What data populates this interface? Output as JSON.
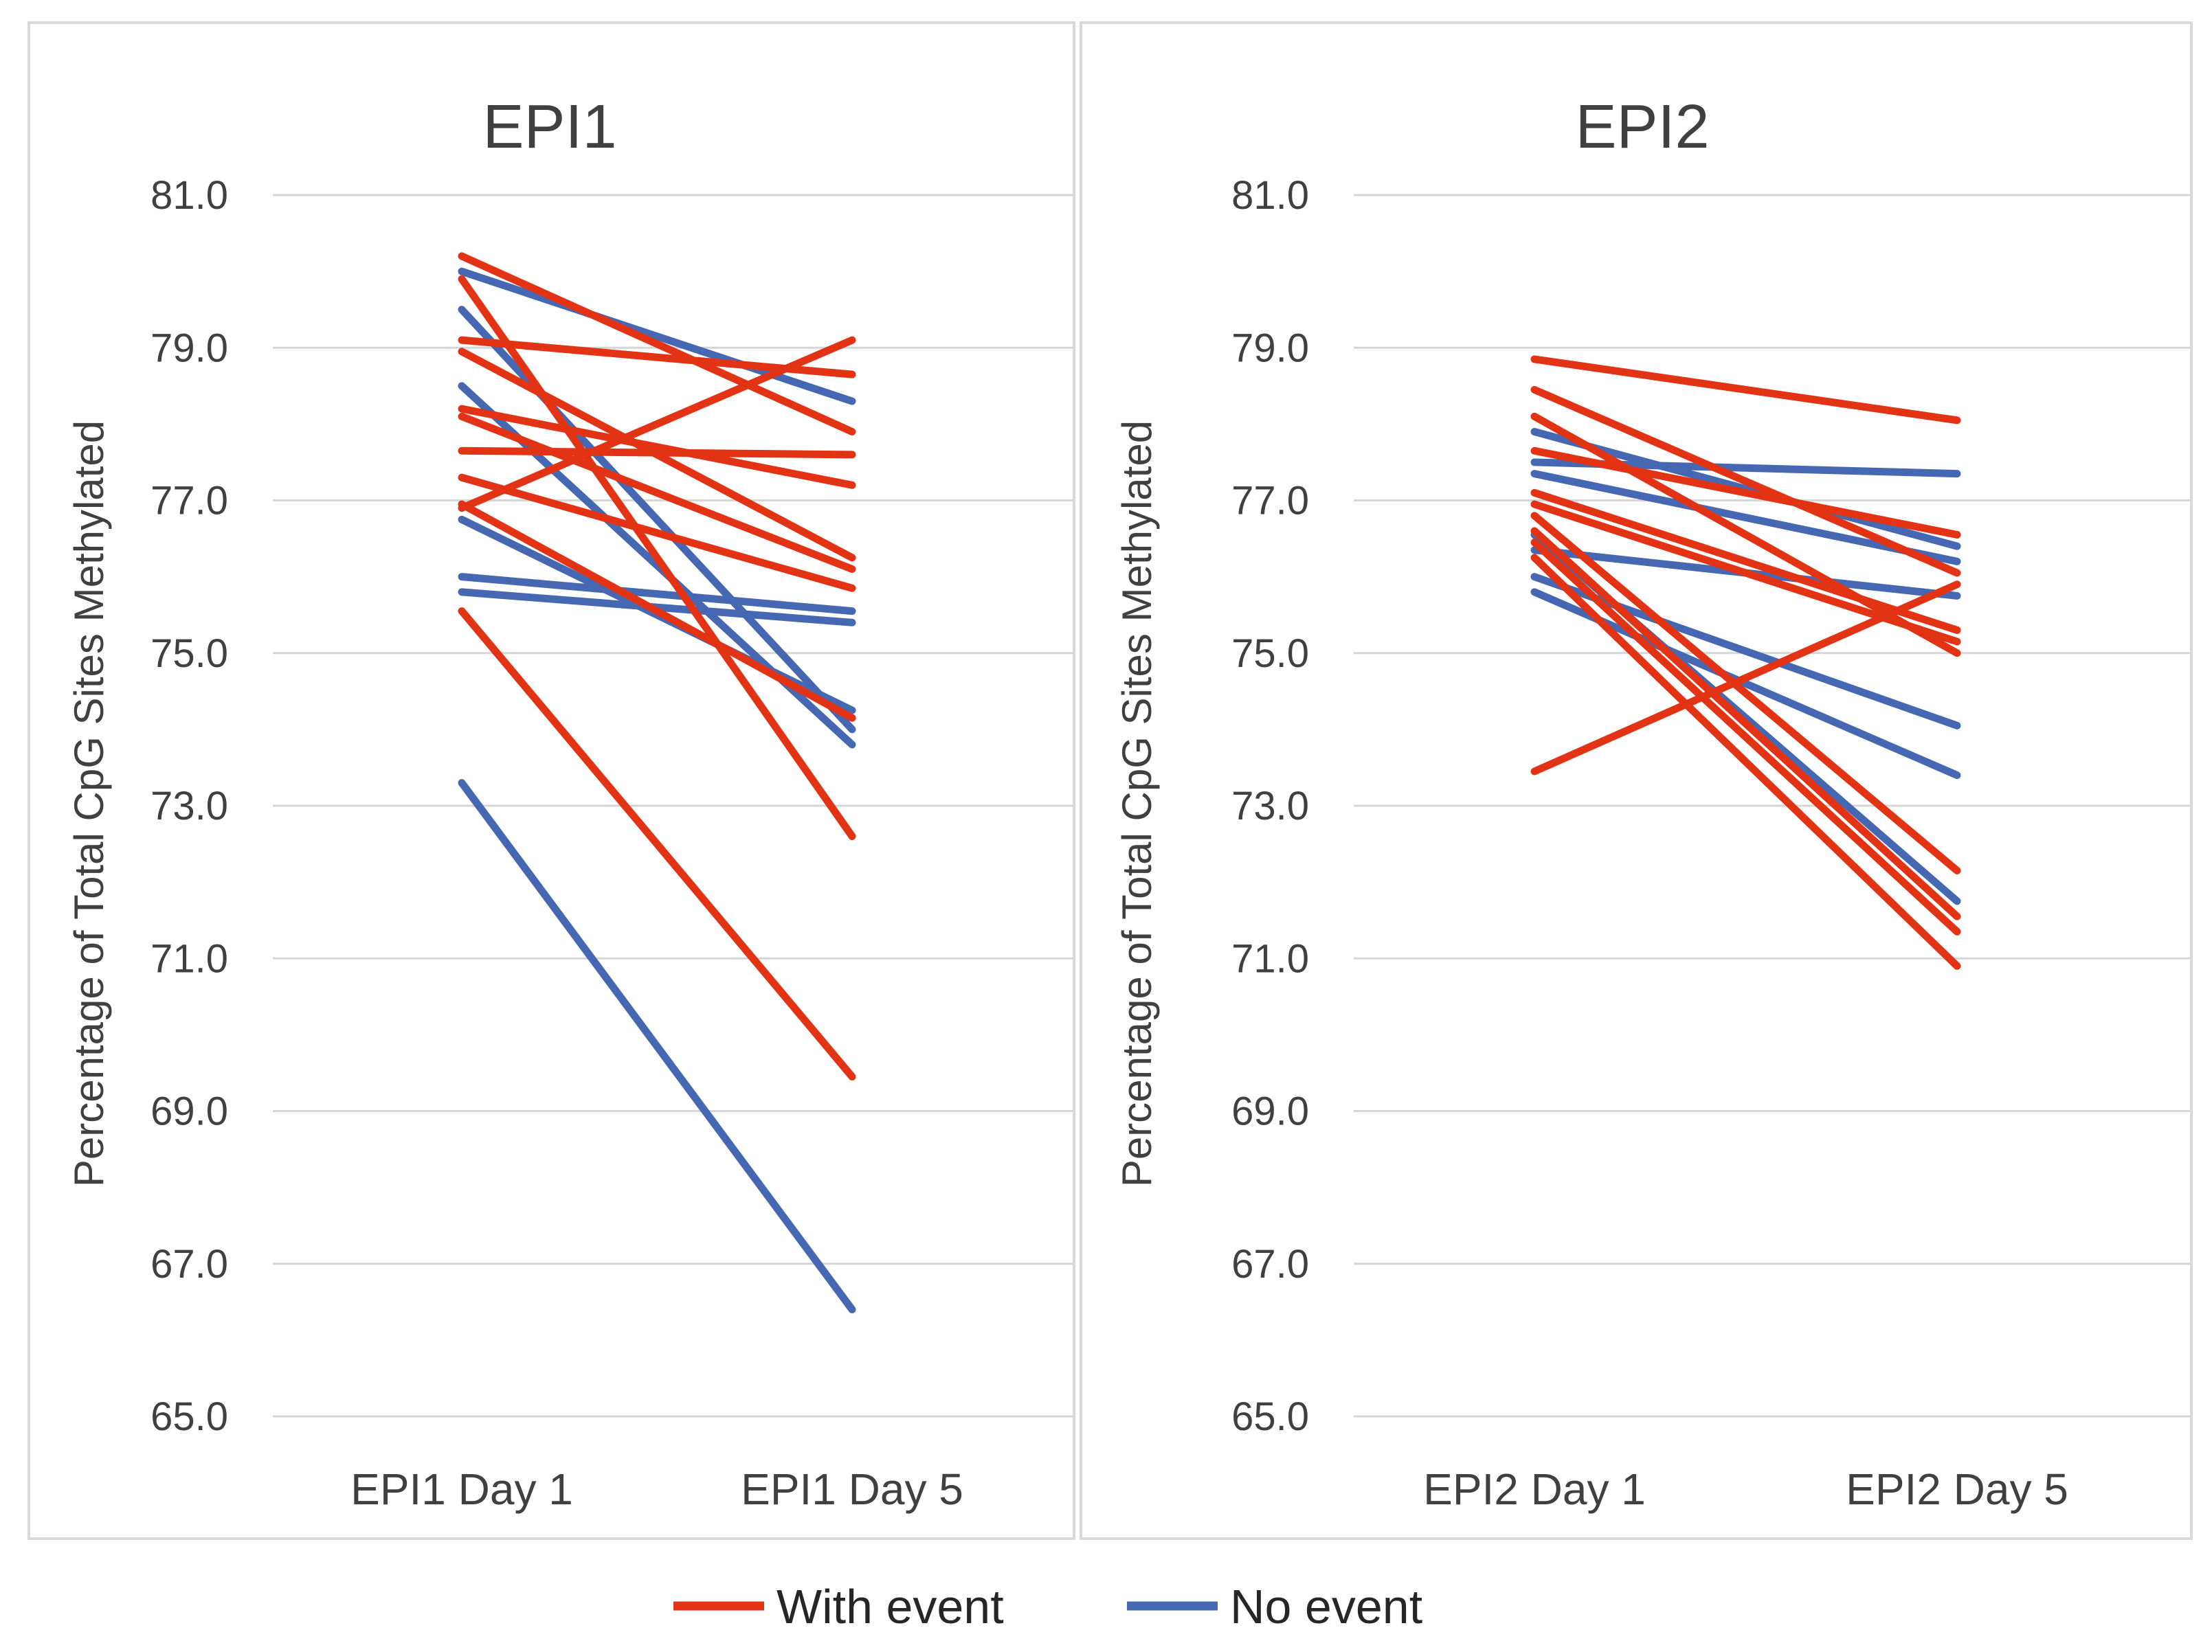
{
  "figure_type": "paired slope chart, two panels",
  "legend": {
    "items": [
      {
        "label": "With event",
        "color": "#e23315"
      },
      {
        "label": "No event",
        "color": "#4668b2"
      }
    ]
  },
  "chart_data": [
    {
      "type": "line",
      "title": "EPI1",
      "ylabel": "Percentage of Total CpG Sites Methylated",
      "xlabel": "",
      "categories": [
        "EPI1 Day 1",
        "EPI1 Day 5"
      ],
      "ylim": [
        65.0,
        81.0
      ],
      "ytick_step": 2.0,
      "yticks": [
        "81.0",
        "79.0",
        "77.0",
        "75.0",
        "73.0",
        "71.0",
        "69.0",
        "67.0",
        "65.0"
      ],
      "grid": "horizontal",
      "legend_position": "bottom",
      "series": [
        {
          "name": "With event",
          "color": "#e23315",
          "lines": [
            [
              80.2,
              77.9
            ],
            [
              79.9,
              72.6
            ],
            [
              79.1,
              78.65
            ],
            [
              78.95,
              76.25
            ],
            [
              78.2,
              77.2
            ],
            [
              78.1,
              76.1
            ],
            [
              77.65,
              77.6
            ],
            [
              77.3,
              75.85
            ],
            [
              76.95,
              74.15
            ],
            [
              76.9,
              79.1
            ],
            [
              75.55,
              69.45
            ]
          ]
        },
        {
          "name": "No event",
          "color": "#4668b2",
          "lines": [
            [
              80.0,
              78.3
            ],
            [
              79.5,
              74.0
            ],
            [
              78.5,
              73.8
            ],
            [
              76.75,
              74.25
            ],
            [
              76.0,
              75.55
            ],
            [
              75.8,
              75.4
            ],
            [
              73.3,
              66.4
            ]
          ]
        }
      ]
    },
    {
      "type": "line",
      "title": "EPI2",
      "ylabel": "Percentage of Total CpG Sites Methylated",
      "xlabel": "",
      "categories": [
        "EPI2 Day 1",
        "EPI2 Day 5"
      ],
      "ylim": [
        65.0,
        81.0
      ],
      "ytick_step": 2.0,
      "yticks": [
        "81.0",
        "79.0",
        "77.0",
        "75.0",
        "73.0",
        "71.0",
        "69.0",
        "67.0",
        "65.0"
      ],
      "grid": "horizontal",
      "legend_position": "bottom",
      "series": [
        {
          "name": "With event",
          "color": "#e23315",
          "lines": [
            [
              78.85,
              78.05
            ],
            [
              78.45,
              76.05
            ],
            [
              78.1,
              75.0
            ],
            [
              77.65,
              76.55
            ],
            [
              77.1,
              75.3
            ],
            [
              76.95,
              75.15
            ],
            [
              76.8,
              72.15
            ],
            [
              76.6,
              71.55
            ],
            [
              76.45,
              71.35
            ],
            [
              76.25,
              70.9
            ],
            [
              73.45,
              75.9
            ]
          ]
        },
        {
          "name": "No event",
          "color": "#4668b2",
          "lines": [
            [
              77.9,
              76.4
            ],
            [
              77.5,
              77.35
            ],
            [
              77.35,
              76.2
            ],
            [
              76.55,
              71.75
            ],
            [
              76.35,
              75.75
            ],
            [
              76.0,
              74.05
            ],
            [
              75.8,
              73.4
            ]
          ]
        }
      ]
    }
  ]
}
